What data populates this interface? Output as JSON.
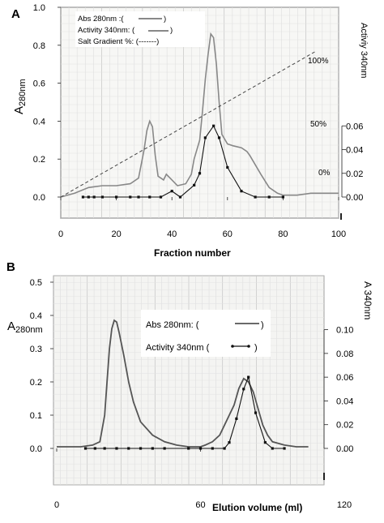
{
  "chart_data": [
    {
      "panel_label": "A",
      "type": "line",
      "xlabel": "Fraction number",
      "ylabel_main": "A",
      "ylabel_sub": "280nm",
      "ylabel_right": "Activiy 340nm",
      "xlim": [
        0,
        100
      ],
      "ylim": [
        0,
        1.0
      ],
      "ylim_right": [
        0,
        0.16
      ],
      "x_ticks": [
        "0",
        "20",
        "40",
        "60",
        "80",
        "100"
      ],
      "y_ticks": [
        "0.0",
        "0.2",
        "0.4",
        "0.6",
        "0.8",
        "1.0"
      ],
      "y_ticks_right": [
        "0.00",
        "0.02",
        "0.04",
        "0.06"
      ],
      "gradient_labels": [
        "100%",
        "50%",
        "0%"
      ],
      "legend": [
        "Abs 280nm :(",
        "Activity 340nm: (",
        "Salt Gradient %: (-------)"
      ],
      "grid": true,
      "series": [
        {
          "name": "Abs 280nm",
          "style": "solid-gray",
          "x": [
            0,
            5,
            10,
            15,
            20,
            25,
            28,
            30,
            31,
            32,
            33,
            34,
            35,
            37,
            38,
            40,
            42,
            45,
            47,
            48,
            50,
            51,
            52,
            53,
            54,
            55,
            56,
            57,
            58,
            60,
            62,
            65,
            67,
            68,
            70,
            72,
            75,
            78,
            80,
            85,
            90,
            100
          ],
          "y": [
            0.0,
            0.02,
            0.05,
            0.06,
            0.06,
            0.07,
            0.1,
            0.25,
            0.35,
            0.4,
            0.37,
            0.22,
            0.11,
            0.09,
            0.12,
            0.09,
            0.06,
            0.07,
            0.12,
            0.2,
            0.3,
            0.45,
            0.62,
            0.75,
            0.86,
            0.84,
            0.7,
            0.5,
            0.33,
            0.28,
            0.27,
            0.26,
            0.24,
            0.22,
            0.17,
            0.12,
            0.05,
            0.02,
            0.01,
            0.01,
            0.02,
            0.02
          ]
        },
        {
          "name": "Activity 340nm",
          "style": "solid-dots",
          "x": [
            8,
            10,
            12,
            15,
            20,
            25,
            28,
            32,
            36,
            40,
            43,
            48,
            50,
            52,
            55,
            57,
            60,
            65,
            70,
            75,
            80
          ],
          "y": [
            0.0,
            0.0,
            0.0,
            0.0,
            0.0,
            0.0,
            0.0,
            0.0,
            0.0,
            0.005,
            0.0,
            0.01,
            0.02,
            0.05,
            0.06,
            0.05,
            0.025,
            0.005,
            0.0,
            0.0,
            0.0
          ]
        },
        {
          "name": "Salt Gradient %",
          "style": "dashed",
          "x": [
            0,
            92
          ],
          "y": [
            0.0,
            0.77
          ]
        }
      ]
    },
    {
      "panel_label": "B",
      "type": "line",
      "xlabel": "Elution volume (ml)",
      "ylabel_main": "A",
      "ylabel_sub": "280nm",
      "ylabel_right": "A 340nm",
      "xlim": [
        0,
        120
      ],
      "ylim": [
        0,
        0.5
      ],
      "ylim_right": [
        0,
        0.14
      ],
      "x_ticks": [
        "0",
        "60",
        "120"
      ],
      "y_ticks": [
        "0.0",
        "0.1",
        "0.2",
        "0.3",
        "0.4",
        "0.5"
      ],
      "y_ticks_right": [
        "0.00",
        "0.02",
        "0.04",
        "0.06",
        "0.08",
        "0.10"
      ],
      "legend": [
        "Abs 280nm: (",
        "Activity 340nm (",
        ")"
      ],
      "grid": true,
      "series": [
        {
          "name": "Abs 280nm",
          "style": "solid-dark",
          "x": [
            0,
            10,
            15,
            18,
            20,
            21,
            22,
            23,
            24,
            25,
            26,
            28,
            30,
            32,
            35,
            40,
            45,
            50,
            55,
            60,
            62,
            65,
            68,
            70,
            72,
            74,
            76,
            78,
            80,
            82,
            84,
            86,
            88,
            90,
            95,
            100,
            105
          ],
          "y": [
            0.005,
            0.005,
            0.01,
            0.02,
            0.1,
            0.2,
            0.3,
            0.36,
            0.385,
            0.38,
            0.35,
            0.28,
            0.2,
            0.14,
            0.08,
            0.04,
            0.02,
            0.01,
            0.005,
            0.005,
            0.01,
            0.02,
            0.04,
            0.07,
            0.1,
            0.13,
            0.18,
            0.21,
            0.2,
            0.17,
            0.12,
            0.07,
            0.04,
            0.02,
            0.01,
            0.005,
            0.005
          ]
        },
        {
          "name": "Activity 340nm",
          "style": "solid-dots",
          "x": [
            12,
            16,
            20,
            25,
            30,
            35,
            40,
            45,
            55,
            60,
            65,
            70,
            72,
            75,
            78,
            80,
            83,
            87,
            90,
            95
          ],
          "y": [
            0.0,
            0.0,
            0.0,
            0.0,
            0.0,
            0.0,
            0.0,
            0.0,
            0.0,
            0.0,
            0.0,
            0.0,
            0.005,
            0.025,
            0.05,
            0.06,
            0.03,
            0.005,
            0.0,
            0.0
          ]
        }
      ]
    }
  ]
}
